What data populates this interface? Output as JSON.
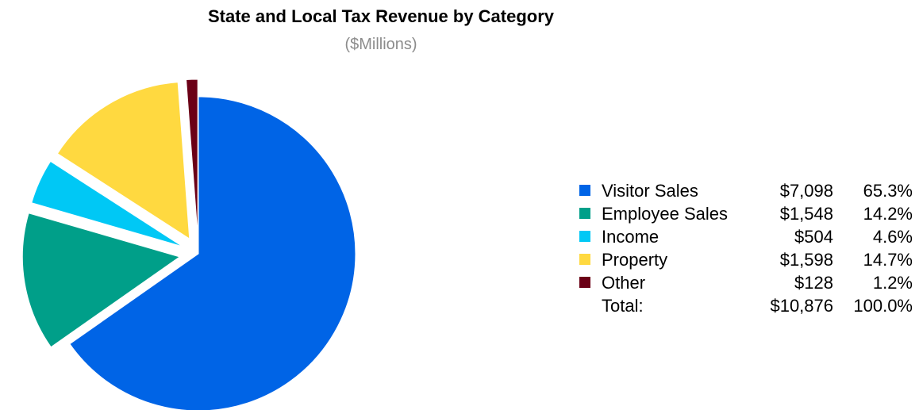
{
  "chart_data": {
    "type": "pie",
    "title": "State and Local Tax Revenue by Category",
    "subtitle": "($Millions)",
    "legend_position": "right",
    "slices": [
      {
        "label": "Visitor Sales",
        "value": 7098,
        "value_text": "$7,098",
        "percent_text": "65.3%",
        "color": "#0064e6"
      },
      {
        "label": "Employee Sales",
        "value": 1548,
        "value_text": "$1,548",
        "percent_text": "14.2%",
        "color": "#009f89"
      },
      {
        "label": "Income",
        "value": 504,
        "value_text": "$504",
        "percent_text": "4.6%",
        "color": "#00c8f5"
      },
      {
        "label": "Property",
        "value": 1598,
        "value_text": "$1,598",
        "percent_text": "14.7%",
        "color": "#ffd940"
      },
      {
        "label": "Other",
        "value": 128,
        "value_text": "$128",
        "percent_text": "1.2%",
        "color": "#6b0016"
      }
    ],
    "total": {
      "label": "Total:",
      "value_text": "$10,876",
      "percent_text": "100.0%"
    }
  }
}
